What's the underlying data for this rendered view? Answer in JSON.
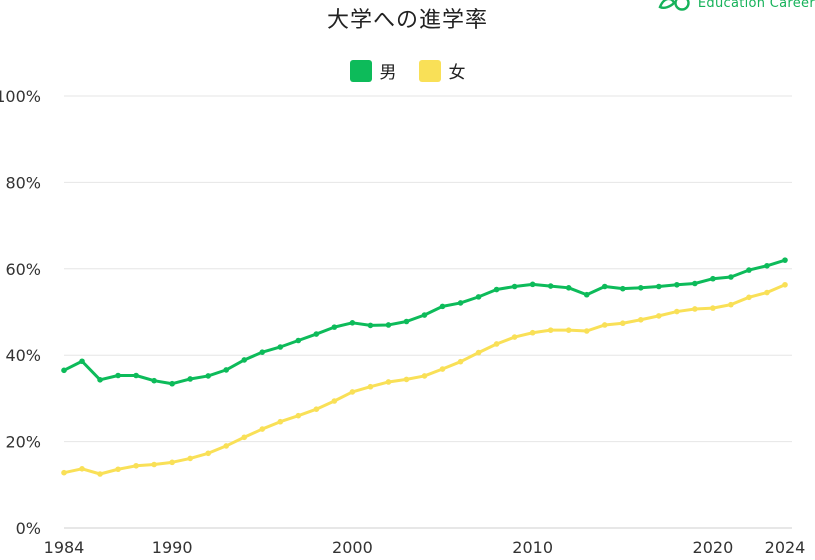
{
  "brand": {
    "text": "Education Career",
    "icon": "leaf-logo-icon",
    "color": "#16b25a"
  },
  "chart_data": {
    "type": "line",
    "title": "大学への進学率",
    "xlabel": "",
    "ylabel": "",
    "x": [
      1984,
      1985,
      1986,
      1987,
      1988,
      1989,
      1990,
      1991,
      1992,
      1993,
      1994,
      1995,
      1996,
      1997,
      1998,
      1999,
      2000,
      2001,
      2002,
      2003,
      2004,
      2005,
      2006,
      2007,
      2008,
      2009,
      2010,
      2011,
      2012,
      2013,
      2014,
      2015,
      2016,
      2017,
      2018,
      2019,
      2020,
      2021,
      2022,
      2023,
      2024
    ],
    "x_ticks": [
      "1984",
      "1990",
      "2000",
      "2010",
      "2020",
      "2024"
    ],
    "y_ticks": [
      "0%",
      "20%",
      "40%",
      "60%",
      "80%",
      "100%"
    ],
    "xlim": [
      1984,
      2024
    ],
    "ylim": [
      0,
      100
    ],
    "grid": true,
    "legend_position": "top-center",
    "series": [
      {
        "name": "男",
        "color": "#0dbb5a",
        "values": [
          36.5,
          38.6,
          34.3,
          35.3,
          35.3,
          34.1,
          33.4,
          34.5,
          35.2,
          36.6,
          38.9,
          40.7,
          41.9,
          43.4,
          44.9,
          46.5,
          47.5,
          46.9,
          47.0,
          47.8,
          49.3,
          51.3,
          52.1,
          53.5,
          55.2,
          55.9,
          56.4,
          56.0,
          55.6,
          54.0,
          55.9,
          55.4,
          55.6,
          55.9,
          56.3,
          56.6,
          57.7,
          58.1,
          59.7,
          60.7,
          62.0
        ]
      },
      {
        "name": "女",
        "color": "#f9e057",
        "values": [
          12.8,
          13.7,
          12.5,
          13.6,
          14.4,
          14.7,
          15.2,
          16.1,
          17.3,
          19.0,
          21.0,
          22.9,
          24.6,
          26.0,
          27.5,
          29.4,
          31.5,
          32.7,
          33.8,
          34.4,
          35.2,
          36.8,
          38.5,
          40.6,
          42.6,
          44.2,
          45.2,
          45.8,
          45.8,
          45.6,
          47.0,
          47.4,
          48.2,
          49.1,
          50.1,
          50.7,
          50.9,
          51.7,
          53.4,
          54.5,
          56.3
        ]
      }
    ]
  }
}
